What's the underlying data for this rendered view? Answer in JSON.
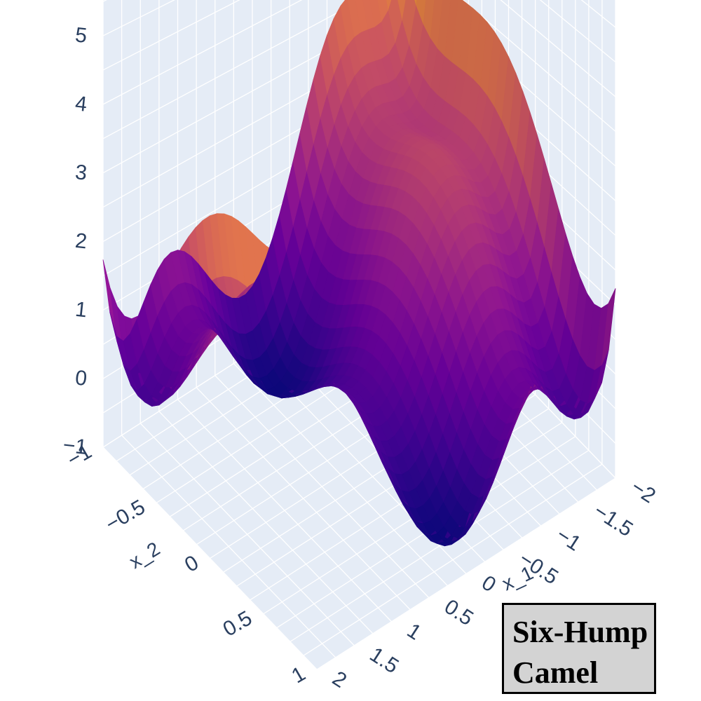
{
  "chart_data": {
    "type": "surface",
    "function": "six-hump camel",
    "title_lines": [
      "Six-Hump",
      "Camel"
    ],
    "x": {
      "label": "x_1",
      "range": [
        -2,
        2
      ],
      "ticks": [
        "−2",
        "−1.5",
        "−1",
        "−0.5",
        "0",
        "0.5",
        "1",
        "1.5",
        "2"
      ]
    },
    "y": {
      "label": "x_2",
      "range": [
        -1,
        1
      ],
      "ticks": [
        "−1",
        "−0.5",
        "0",
        "0.5",
        "1"
      ]
    },
    "z": {
      "label": "",
      "range": [
        -1,
        5.9
      ],
      "ticks": [
        "−1",
        "0",
        "1",
        "2",
        "3",
        "4",
        "5"
      ]
    },
    "z_peak": 5.73,
    "z_min": -1.03,
    "colorscale": "plasma",
    "grid": true,
    "background": "#e5ecf6",
    "gridcolor": "#ffffff"
  }
}
